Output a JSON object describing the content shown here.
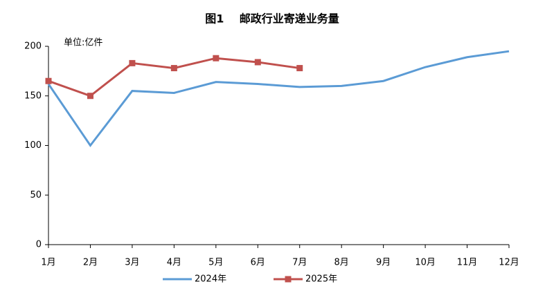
{
  "chart_data": {
    "type": "line",
    "title": "图1    邮政行业寄递业务量",
    "y_axis_label": "单位:亿件",
    "categories": [
      "1月",
      "2月",
      "3月",
      "4月",
      "5月",
      "6月",
      "7月",
      "8月",
      "9月",
      "10月",
      "11月",
      "12月"
    ],
    "series": [
      {
        "name": "2024年",
        "color": "#5b9bd5",
        "values": [
          162,
          100,
          155,
          153,
          164,
          162,
          159,
          160,
          165,
          179,
          189,
          195
        ]
      },
      {
        "name": "2025年",
        "color": "#c0504d",
        "marker": "square",
        "values": [
          165,
          150,
          183,
          178,
          188,
          184,
          178,
          null,
          null,
          null,
          null,
          null
        ]
      }
    ],
    "ylim": [
      0,
      200
    ],
    "yticks": [
      0,
      50,
      100,
      150,
      200
    ],
    "grid": false
  }
}
